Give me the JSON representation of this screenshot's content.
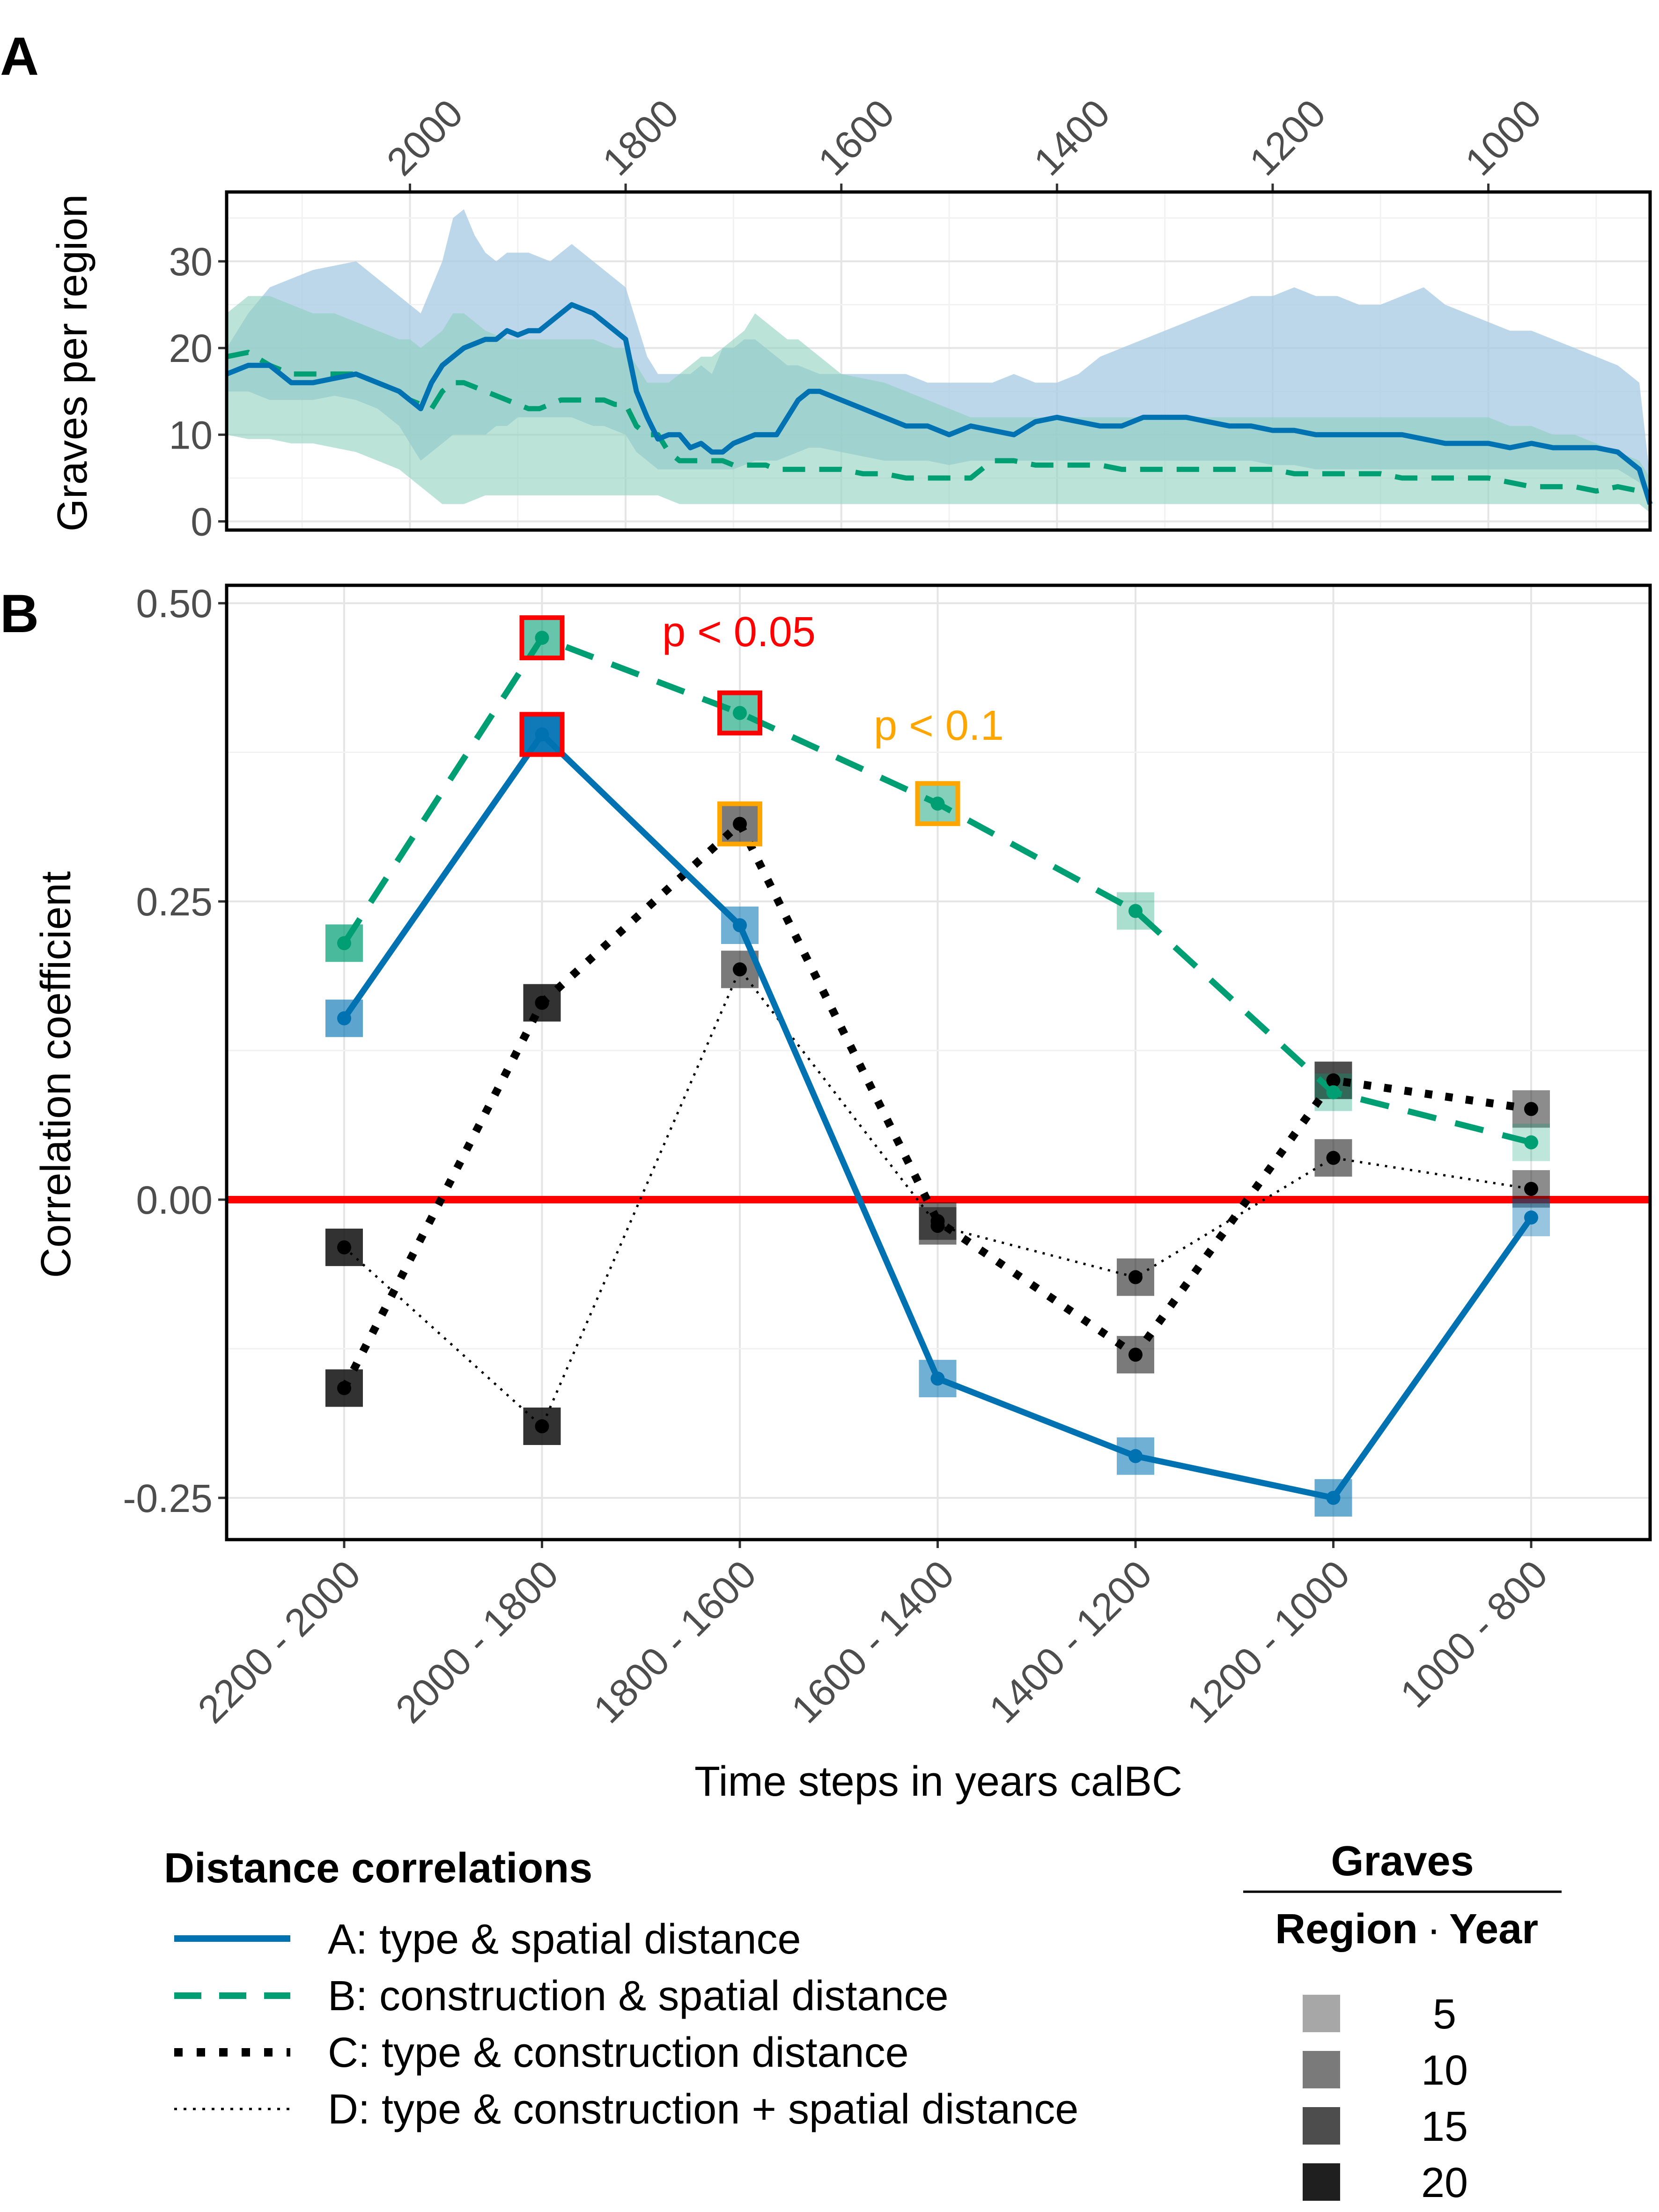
{
  "panels": {
    "a_label": "A",
    "b_label": "B"
  },
  "chart_data": [
    {
      "type": "area",
      "panel": "A",
      "ylabel": "Graves per region",
      "xlabel": "",
      "x_reversed": true,
      "xlim": [
        2170,
        850
      ],
      "ylim": [
        -1,
        38
      ],
      "x_ticks": [
        2000,
        1800,
        1600,
        1400,
        1200,
        1000
      ],
      "y_ticks": [
        0,
        10,
        20,
        30
      ],
      "series": [
        {
          "color": "#0072B2",
          "line": "solid",
          "x": [
            2170,
            2150,
            2130,
            2110,
            2090,
            2070,
            2050,
            2030,
            2010,
            2000,
            1990,
            1980,
            1970,
            1960,
            1950,
            1940,
            1930,
            1920,
            1910,
            1900,
            1890,
            1880,
            1870,
            1860,
            1850,
            1840,
            1830,
            1820,
            1810,
            1800,
            1790,
            1780,
            1770,
            1760,
            1750,
            1740,
            1730,
            1720,
            1710,
            1700,
            1690,
            1680,
            1670,
            1660,
            1650,
            1640,
            1630,
            1620,
            1600,
            1580,
            1560,
            1540,
            1520,
            1500,
            1480,
            1460,
            1440,
            1420,
            1400,
            1380,
            1360,
            1340,
            1320,
            1300,
            1280,
            1260,
            1240,
            1220,
            1200,
            1180,
            1160,
            1140,
            1120,
            1100,
            1080,
            1060,
            1040,
            1020,
            1000,
            980,
            960,
            940,
            920,
            900,
            880,
            860,
            850
          ],
          "mean": [
            17,
            18,
            18,
            16,
            16,
            16.5,
            17,
            16,
            15,
            14,
            13,
            16,
            18,
            19,
            20,
            20.5,
            21,
            21,
            22,
            21.5,
            22,
            22,
            23,
            24,
            25,
            24.5,
            24,
            23,
            22,
            21,
            15,
            12,
            9.5,
            10,
            10,
            8.5,
            9,
            8,
            8,
            9,
            9.5,
            10,
            10,
            10,
            12,
            14,
            15,
            15,
            14,
            13,
            12,
            11,
            11,
            10,
            11,
            10.5,
            10,
            11.5,
            12,
            11.5,
            11,
            11,
            12,
            12,
            12,
            11.5,
            11,
            11,
            10.5,
            10.5,
            10,
            10,
            10,
            10,
            10,
            9.5,
            9,
            9,
            9,
            8.5,
            9,
            8.5,
            8.5,
            8.5,
            8,
            6,
            2
          ],
          "lower": [
            15,
            15,
            14,
            14,
            14,
            14.5,
            14,
            13,
            11,
            9,
            7,
            8,
            9,
            10,
            10,
            10,
            10,
            11,
            11,
            12,
            12,
            12,
            12,
            12,
            12,
            11.5,
            11,
            11,
            10.5,
            10,
            8,
            7,
            6,
            6,
            6,
            6,
            6,
            6,
            6,
            6,
            6.5,
            7,
            7,
            7,
            7.5,
            8,
            8.5,
            8.5,
            8,
            7.5,
            7,
            7,
            7,
            6.5,
            7,
            7,
            7,
            7,
            7,
            7,
            7,
            7,
            7,
            7,
            7,
            7,
            7,
            7,
            6.5,
            6.5,
            6,
            6,
            6,
            6,
            6,
            6,
            6,
            6,
            6,
            6,
            6,
            6,
            6,
            6,
            6,
            4.5,
            2
          ],
          "upper": [
            20,
            24,
            27,
            28,
            29,
            29.5,
            30,
            28,
            26,
            25,
            24,
            27,
            30,
            35,
            36,
            33,
            31,
            30,
            31,
            31,
            31,
            30.5,
            30,
            31,
            32,
            31,
            30,
            29,
            28,
            27,
            23,
            19,
            17,
            17,
            17,
            17,
            18,
            17,
            20,
            20,
            21,
            21,
            20,
            19,
            18,
            18,
            17.5,
            17,
            17,
            17,
            17,
            17,
            16,
            16,
            16,
            16,
            17,
            16,
            16,
            17,
            19,
            20,
            21,
            22,
            23,
            24,
            25,
            26,
            26,
            27,
            26,
            26,
            25,
            25,
            26,
            27,
            25,
            24,
            23,
            22,
            22,
            21,
            20,
            19,
            18,
            16,
            5
          ]
        },
        {
          "color": "#009E73",
          "line": "dashed",
          "x": [
            2170,
            2150,
            2130,
            2110,
            2090,
            2070,
            2050,
            2030,
            2010,
            2000,
            1990,
            1980,
            1970,
            1960,
            1950,
            1940,
            1930,
            1920,
            1910,
            1900,
            1890,
            1880,
            1870,
            1860,
            1850,
            1840,
            1830,
            1820,
            1810,
            1800,
            1790,
            1780,
            1770,
            1760,
            1750,
            1740,
            1730,
            1720,
            1710,
            1700,
            1690,
            1680,
            1670,
            1660,
            1650,
            1640,
            1630,
            1620,
            1600,
            1580,
            1560,
            1540,
            1520,
            1500,
            1480,
            1460,
            1440,
            1420,
            1400,
            1380,
            1360,
            1340,
            1320,
            1300,
            1280,
            1260,
            1240,
            1220,
            1200,
            1180,
            1160,
            1140,
            1120,
            1100,
            1080,
            1060,
            1040,
            1020,
            1000,
            980,
            960,
            940,
            920,
            900,
            880,
            860,
            850
          ],
          "mean": [
            19,
            19.5,
            18,
            17,
            17,
            17,
            17,
            16,
            15,
            14,
            13.5,
            13,
            15,
            16,
            16,
            15.5,
            15,
            14.5,
            14,
            13.5,
            13,
            13,
            13.5,
            14,
            14,
            14,
            14,
            14,
            13.5,
            13.5,
            11,
            10,
            10,
            8,
            7,
            7,
            7,
            7,
            7,
            6.5,
            6.5,
            6.5,
            6.5,
            6,
            6,
            6,
            6,
            6,
            6,
            5.5,
            5.5,
            5,
            5,
            5,
            5,
            7,
            7,
            6.5,
            6.5,
            6.5,
            6.5,
            6,
            6,
            6,
            6,
            6,
            6,
            6,
            6,
            5.5,
            5.5,
            5.5,
            5.5,
            5.5,
            5,
            5,
            5,
            5,
            5,
            4.5,
            4,
            4,
            4,
            3.5,
            4,
            3.5,
            3
          ],
          "lower": [
            10,
            9.5,
            9.5,
            9,
            9,
            8.5,
            8,
            7,
            6,
            5,
            4,
            3,
            2,
            2,
            2,
            2.5,
            3,
            3,
            3,
            3,
            3,
            3,
            3,
            3,
            3,
            3,
            3,
            3,
            3,
            3,
            3,
            3,
            3,
            2.5,
            2,
            2,
            2,
            2,
            2,
            2,
            2,
            2,
            2,
            2,
            2,
            2,
            2,
            2,
            2,
            2,
            2,
            2,
            2,
            2,
            2,
            2,
            2,
            2,
            2,
            2,
            2,
            2,
            2,
            2,
            2,
            2,
            2,
            2,
            2,
            2,
            2,
            2,
            2,
            2,
            2,
            2,
            2,
            2,
            2,
            2,
            2,
            2,
            2,
            2,
            2,
            2,
            1
          ],
          "upper": [
            24,
            26,
            26,
            25,
            24,
            24,
            23,
            22,
            21,
            21,
            20,
            21,
            22,
            24,
            24,
            23,
            22,
            21.5,
            21,
            21,
            21,
            21,
            21,
            21,
            21,
            21,
            21,
            20.5,
            20,
            20,
            18,
            16,
            16,
            16,
            17,
            18,
            19,
            19,
            20,
            21,
            22,
            24,
            23,
            22,
            21,
            21,
            20,
            19,
            17,
            16.5,
            16,
            15,
            14,
            13,
            12,
            12,
            12,
            12,
            12,
            12,
            12,
            12,
            12,
            12,
            12,
            12,
            12,
            12,
            12,
            12,
            12,
            12,
            12,
            12,
            12,
            12,
            12,
            12,
            12,
            11,
            11,
            10,
            10,
            9,
            8,
            7,
            5
          ]
        }
      ]
    },
    {
      "type": "line",
      "panel": "B",
      "xlabel": "Time steps in years calBC",
      "ylabel": "Correlation coefficient",
      "categories": [
        "2200 - 2000",
        "2000 - 1800",
        "1800 - 1600",
        "1600 - 1400",
        "1400 - 1200",
        "1200 - 1000",
        "1000 - 800"
      ],
      "ylim": [
        -0.285,
        0.515
      ],
      "y_ticks": [
        -0.25,
        0.0,
        0.25,
        0.5
      ],
      "y_tick_labels": [
        "-0.25",
        "0.00",
        "0.25",
        "0.50"
      ],
      "reference_line": {
        "y": 0,
        "color": "#FF0000"
      },
      "series": [
        {
          "name": "A: type & spatial distance",
          "color": "#0072B2",
          "line": "solid",
          "values": [
            0.152,
            0.39,
            0.23,
            -0.15,
            -0.215,
            -0.25,
            -0.015
          ],
          "graves": [
            12,
            20,
            10,
            10,
            10,
            11,
            6
          ]
        },
        {
          "name": "B: construction & spatial distance",
          "color": "#009E73",
          "line": "dashed",
          "values": [
            0.215,
            0.471,
            0.408,
            0.332,
            0.242,
            0.09,
            0.048
          ],
          "graves": [
            14,
            11,
            11,
            8,
            4,
            4,
            2
          ]
        },
        {
          "name": "C: type & construction distance",
          "color": "#000000",
          "line": "dotted-thick",
          "values": [
            -0.158,
            0.165,
            0.315,
            -0.018,
            -0.13,
            0.1,
            0.076
          ],
          "graves": [
            18,
            18,
            10,
            10,
            10,
            15,
            8
          ]
        },
        {
          "name": "D: type & construction + spatial distance",
          "color": "#000000",
          "line": "dotted-thin",
          "values": [
            -0.04,
            -0.19,
            0.193,
            -0.022,
            -0.065,
            0.035,
            0.009
          ],
          "graves": [
            18,
            18,
            10,
            10,
            10,
            10,
            8
          ]
        }
      ],
      "highlights": [
        {
          "series": 1,
          "index": 1,
          "level": "p < 0.05"
        },
        {
          "series": 0,
          "index": 1,
          "level": "p < 0.05"
        },
        {
          "series": 1,
          "index": 2,
          "level": "p < 0.05"
        },
        {
          "series": 2,
          "index": 2,
          "level": "p < 0.1"
        },
        {
          "series": 1,
          "index": 3,
          "level": "p < 0.1"
        }
      ],
      "annotations": [
        {
          "text": "p < 0.05",
          "color": "#FF0000"
        },
        {
          "text": "p < 0.1",
          "color": "#FFA500"
        }
      ],
      "legend": {
        "title": "Distance correlations",
        "size_title_top": "Graves",
        "size_title_bottom_left": "Region",
        "size_title_dot": "·",
        "size_title_bottom_right": "Year",
        "size_values": [
          5,
          10,
          15,
          20
        ],
        "size_labels": [
          "5",
          "10",
          "15",
          "20"
        ]
      }
    }
  ]
}
